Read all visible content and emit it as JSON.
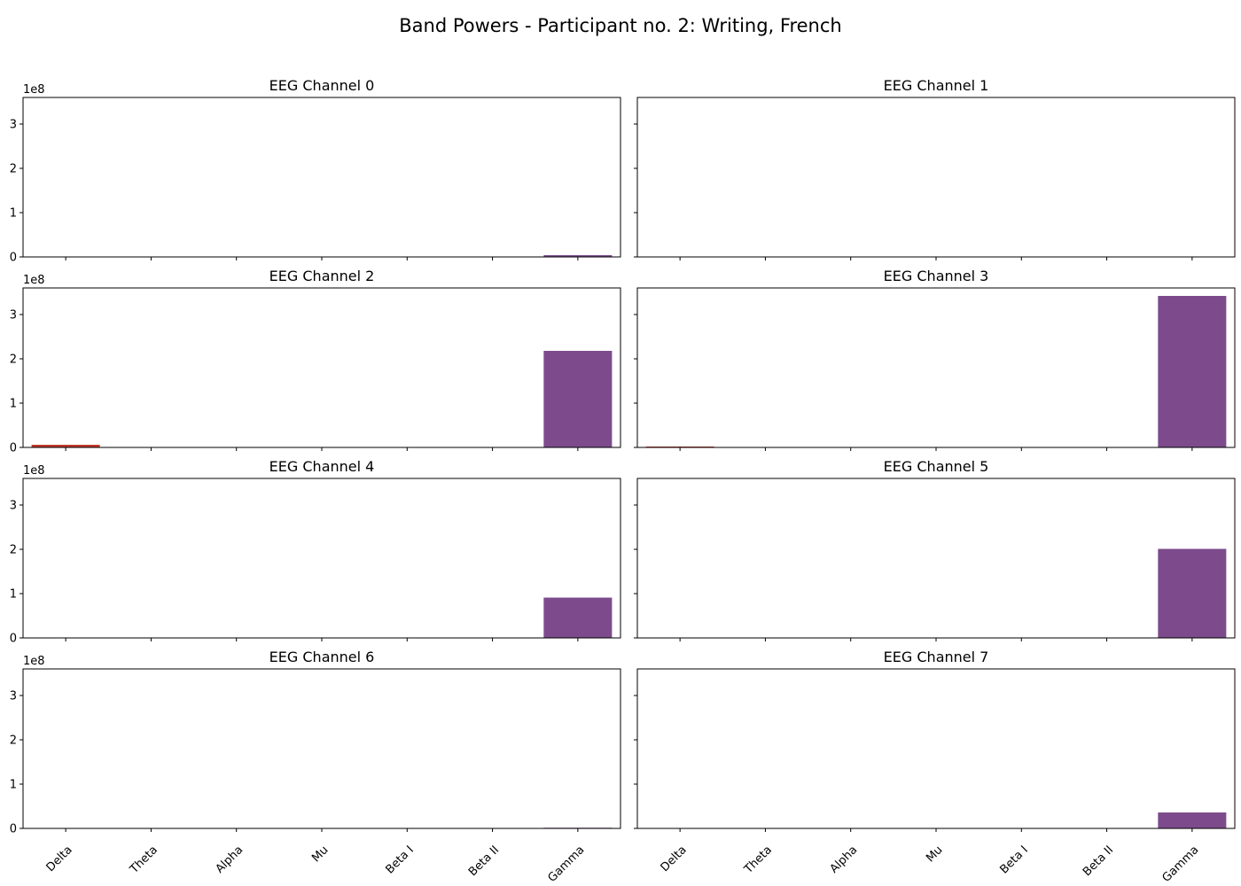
{
  "chart_data": {
    "type": "bar",
    "title": "Band Powers - Participant no. 2: Writing, French",
    "categories": [
      "Delta",
      "Theta",
      "Alpha",
      "Mu",
      "Beta I",
      "Beta II",
      "Gamma"
    ],
    "category_colors": [
      "#c0392b",
      "#e67e22",
      "#f1c40f",
      "#27ae60",
      "#2980b9",
      "#16a085",
      "#7d4b8c"
    ],
    "y_multiplier_label": "1e8",
    "y_ticks": [
      0,
      1,
      2,
      3
    ],
    "ylim": [
      0,
      3.6
    ],
    "grid": false,
    "subplots": [
      {
        "title": "EEG Channel 0",
        "values": [
          0.01,
          0,
          0,
          0,
          0,
          0,
          0.04
        ]
      },
      {
        "title": "EEG Channel 1",
        "values": [
          0,
          0,
          0,
          0,
          0,
          0,
          0.005
        ]
      },
      {
        "title": "EEG Channel 2",
        "values": [
          0.06,
          0,
          0,
          0,
          0,
          0,
          2.18
        ]
      },
      {
        "title": "EEG Channel 3",
        "values": [
          0.02,
          0,
          0,
          0,
          0,
          0,
          3.42
        ]
      },
      {
        "title": "EEG Channel 4",
        "values": [
          0.005,
          0,
          0,
          0,
          0,
          0,
          0.91
        ]
      },
      {
        "title": "EEG Channel 5",
        "values": [
          0.005,
          0,
          0,
          0,
          0,
          0,
          2.01
        ]
      },
      {
        "title": "EEG Channel 6",
        "values": [
          0,
          0,
          0,
          0,
          0,
          0,
          0.015
        ]
      },
      {
        "title": "EEG Channel 7",
        "values": [
          0,
          0,
          0,
          0,
          0,
          0,
          0.36
        ]
      }
    ]
  }
}
